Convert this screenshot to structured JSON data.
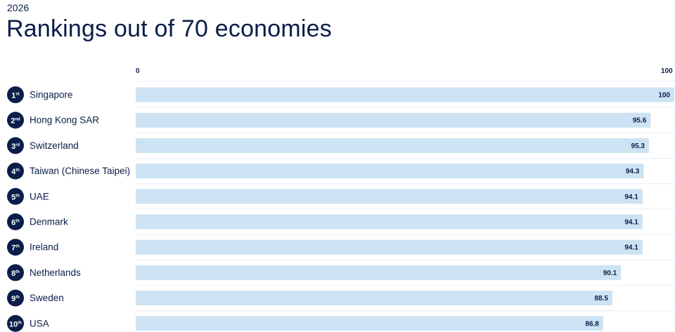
{
  "header": {
    "year": "2026",
    "title": "Rankings out of 70 economies"
  },
  "colors": {
    "bar": "#cde3f3",
    "badge": "#0b1d49",
    "text": "#0b1d49",
    "row_divider": "#e9eef4"
  },
  "chart_data": {
    "type": "bar",
    "orientation": "horizontal",
    "xlim": [
      0,
      100
    ],
    "x_ticks": [
      "0",
      "100"
    ],
    "categories": [
      "Singapore",
      "Hong Kong SAR",
      "Switzerland",
      "Taiwan (Chinese Taipei)",
      "UAE",
      "Denmark",
      "Ireland",
      "Netherlands",
      "Sweden",
      "USA"
    ],
    "ranks": [
      {
        "num": "1",
        "suffix": "st"
      },
      {
        "num": "2",
        "suffix": "nd"
      },
      {
        "num": "3",
        "suffix": "rd"
      },
      {
        "num": "4",
        "suffix": "th"
      },
      {
        "num": "5",
        "suffix": "th"
      },
      {
        "num": "6",
        "suffix": "th"
      },
      {
        "num": "7",
        "suffix": "th"
      },
      {
        "num": "8",
        "suffix": "th"
      },
      {
        "num": "9",
        "suffix": "th"
      },
      {
        "num": "10",
        "suffix": "th"
      }
    ],
    "values": [
      100,
      95.6,
      95.3,
      94.3,
      94.1,
      94.1,
      94.1,
      90.1,
      88.5,
      86.8
    ],
    "value_labels": [
      "100",
      "95.6",
      "95.3",
      "94.3",
      "94.1",
      "94.1",
      "94.1",
      "90.1",
      "88.5",
      "86.8"
    ],
    "grid": false,
    "legend": "none"
  }
}
